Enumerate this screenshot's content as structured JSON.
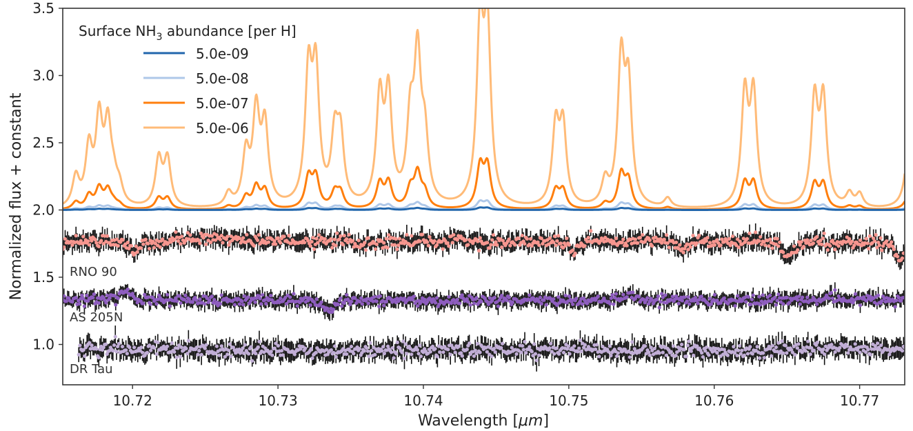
{
  "chart_data": {
    "type": "line",
    "xlabel_prefix": "Wavelength [",
    "xlabel_unit": "μm",
    "xlabel_suffix": "]",
    "ylabel": "Normalized flux + constant",
    "xlim": [
      10.7152,
      10.7731
    ],
    "ylim": [
      0.7,
      3.5
    ],
    "xticks": [
      10.72,
      10.73,
      10.74,
      10.75,
      10.76,
      10.77
    ],
    "xtick_labels": [
      "10.72",
      "10.73",
      "10.74",
      "10.75",
      "10.76",
      "10.77"
    ],
    "yticks": [
      1.0,
      1.5,
      2.0,
      2.5,
      3.0,
      3.5
    ],
    "ytick_labels": [
      "1.0",
      "1.5",
      "2.0",
      "2.5",
      "3.0",
      "3.5"
    ],
    "legend": {
      "title_main": "Surface NH",
      "title_sub": "3",
      "title_rest": " abundance [per H]",
      "placement": "upper-left"
    },
    "model_baseline": 2.0,
    "model_lines": [
      {
        "x": 10.7161,
        "rel": 0.22
      },
      {
        "x": 10.717,
        "rel": 0.42
      },
      {
        "x": 10.7177,
        "rel": 0.62
      },
      {
        "x": 10.7183,
        "rel": 0.56
      },
      {
        "x": 10.7187,
        "rel": 0.15
      },
      {
        "x": 10.7191,
        "rel": 0.12
      },
      {
        "x": 10.7218,
        "rel": 0.35
      },
      {
        "x": 10.7224,
        "rel": 0.35
      },
      {
        "x": 10.7266,
        "rel": 0.1
      },
      {
        "x": 10.7278,
        "rel": 0.38
      },
      {
        "x": 10.7285,
        "rel": 0.68
      },
      {
        "x": 10.7291,
        "rel": 0.58
      },
      {
        "x": 10.7321,
        "rel": 0.95
      },
      {
        "x": 10.7326,
        "rel": 0.95
      },
      {
        "x": 10.7339,
        "rel": 0.48
      },
      {
        "x": 10.7343,
        "rel": 0.48
      },
      {
        "x": 10.737,
        "rel": 0.78
      },
      {
        "x": 10.7376,
        "rel": 0.8
      },
      {
        "x": 10.7391,
        "rel": 0.58
      },
      {
        "x": 10.7396,
        "rel": 1.05
      },
      {
        "x": 10.7401,
        "rel": 0.45
      },
      {
        "x": 10.7439,
        "rel": 1.27
      },
      {
        "x": 10.7444,
        "rel": 1.27
      },
      {
        "x": 10.7491,
        "rel": 0.58
      },
      {
        "x": 10.7496,
        "rel": 0.58
      },
      {
        "x": 10.7525,
        "rel": 0.18
      },
      {
        "x": 10.7536,
        "rel": 1.05
      },
      {
        "x": 10.7541,
        "rel": 0.85
      },
      {
        "x": 10.7568,
        "rel": 0.07
      },
      {
        "x": 10.7621,
        "rel": 0.82
      },
      {
        "x": 10.7627,
        "rel": 0.82
      },
      {
        "x": 10.7669,
        "rel": 0.78
      },
      {
        "x": 10.7675,
        "rel": 0.78
      },
      {
        "x": 10.7693,
        "rel": 0.1
      },
      {
        "x": 10.77,
        "rel": 0.1
      },
      {
        "x": 10.7735,
        "rel": 0.8
      }
    ],
    "series": [
      {
        "name": "5.0e-09",
        "scale": 0.012,
        "color": "#2166ac"
      },
      {
        "name": "5.0e-08",
        "scale": 0.045,
        "color": "#aec7e8"
      },
      {
        "name": "5.0e-07",
        "scale": 0.24,
        "color": "#ff7f0e"
      },
      {
        "name": "5.0e-06",
        "scale": 1.0,
        "color": "#ffbb78"
      }
    ],
    "observed": [
      {
        "name": "RNO 90",
        "offset": 1.77,
        "noise": 0.04,
        "x_start": 10.7152,
        "color": "#f7968f",
        "dips": [
          {
            "x": 10.7202,
            "depth": 0.06
          },
          {
            "x": 10.7503,
            "depth": 0.07
          },
          {
            "x": 10.7579,
            "depth": 0.05
          },
          {
            "x": 10.7651,
            "depth": 0.1
          },
          {
            "x": 10.7728,
            "depth": 0.12
          }
        ]
      },
      {
        "name": "AS 205N",
        "offset": 1.33,
        "noise": 0.035,
        "x_start": 10.7152,
        "color": "#8e5dbf",
        "dips": [
          {
            "x": 10.7335,
            "depth": 0.07
          },
          {
            "x": 10.7195,
            "depth": -0.05
          },
          {
            "x": 10.7542,
            "depth": -0.04
          }
        ]
      },
      {
        "name": "DR Tau",
        "offset": 0.96,
        "noise": 0.045,
        "x_start": 10.7163,
        "color": "#c1aed6",
        "dips": []
      }
    ]
  }
}
